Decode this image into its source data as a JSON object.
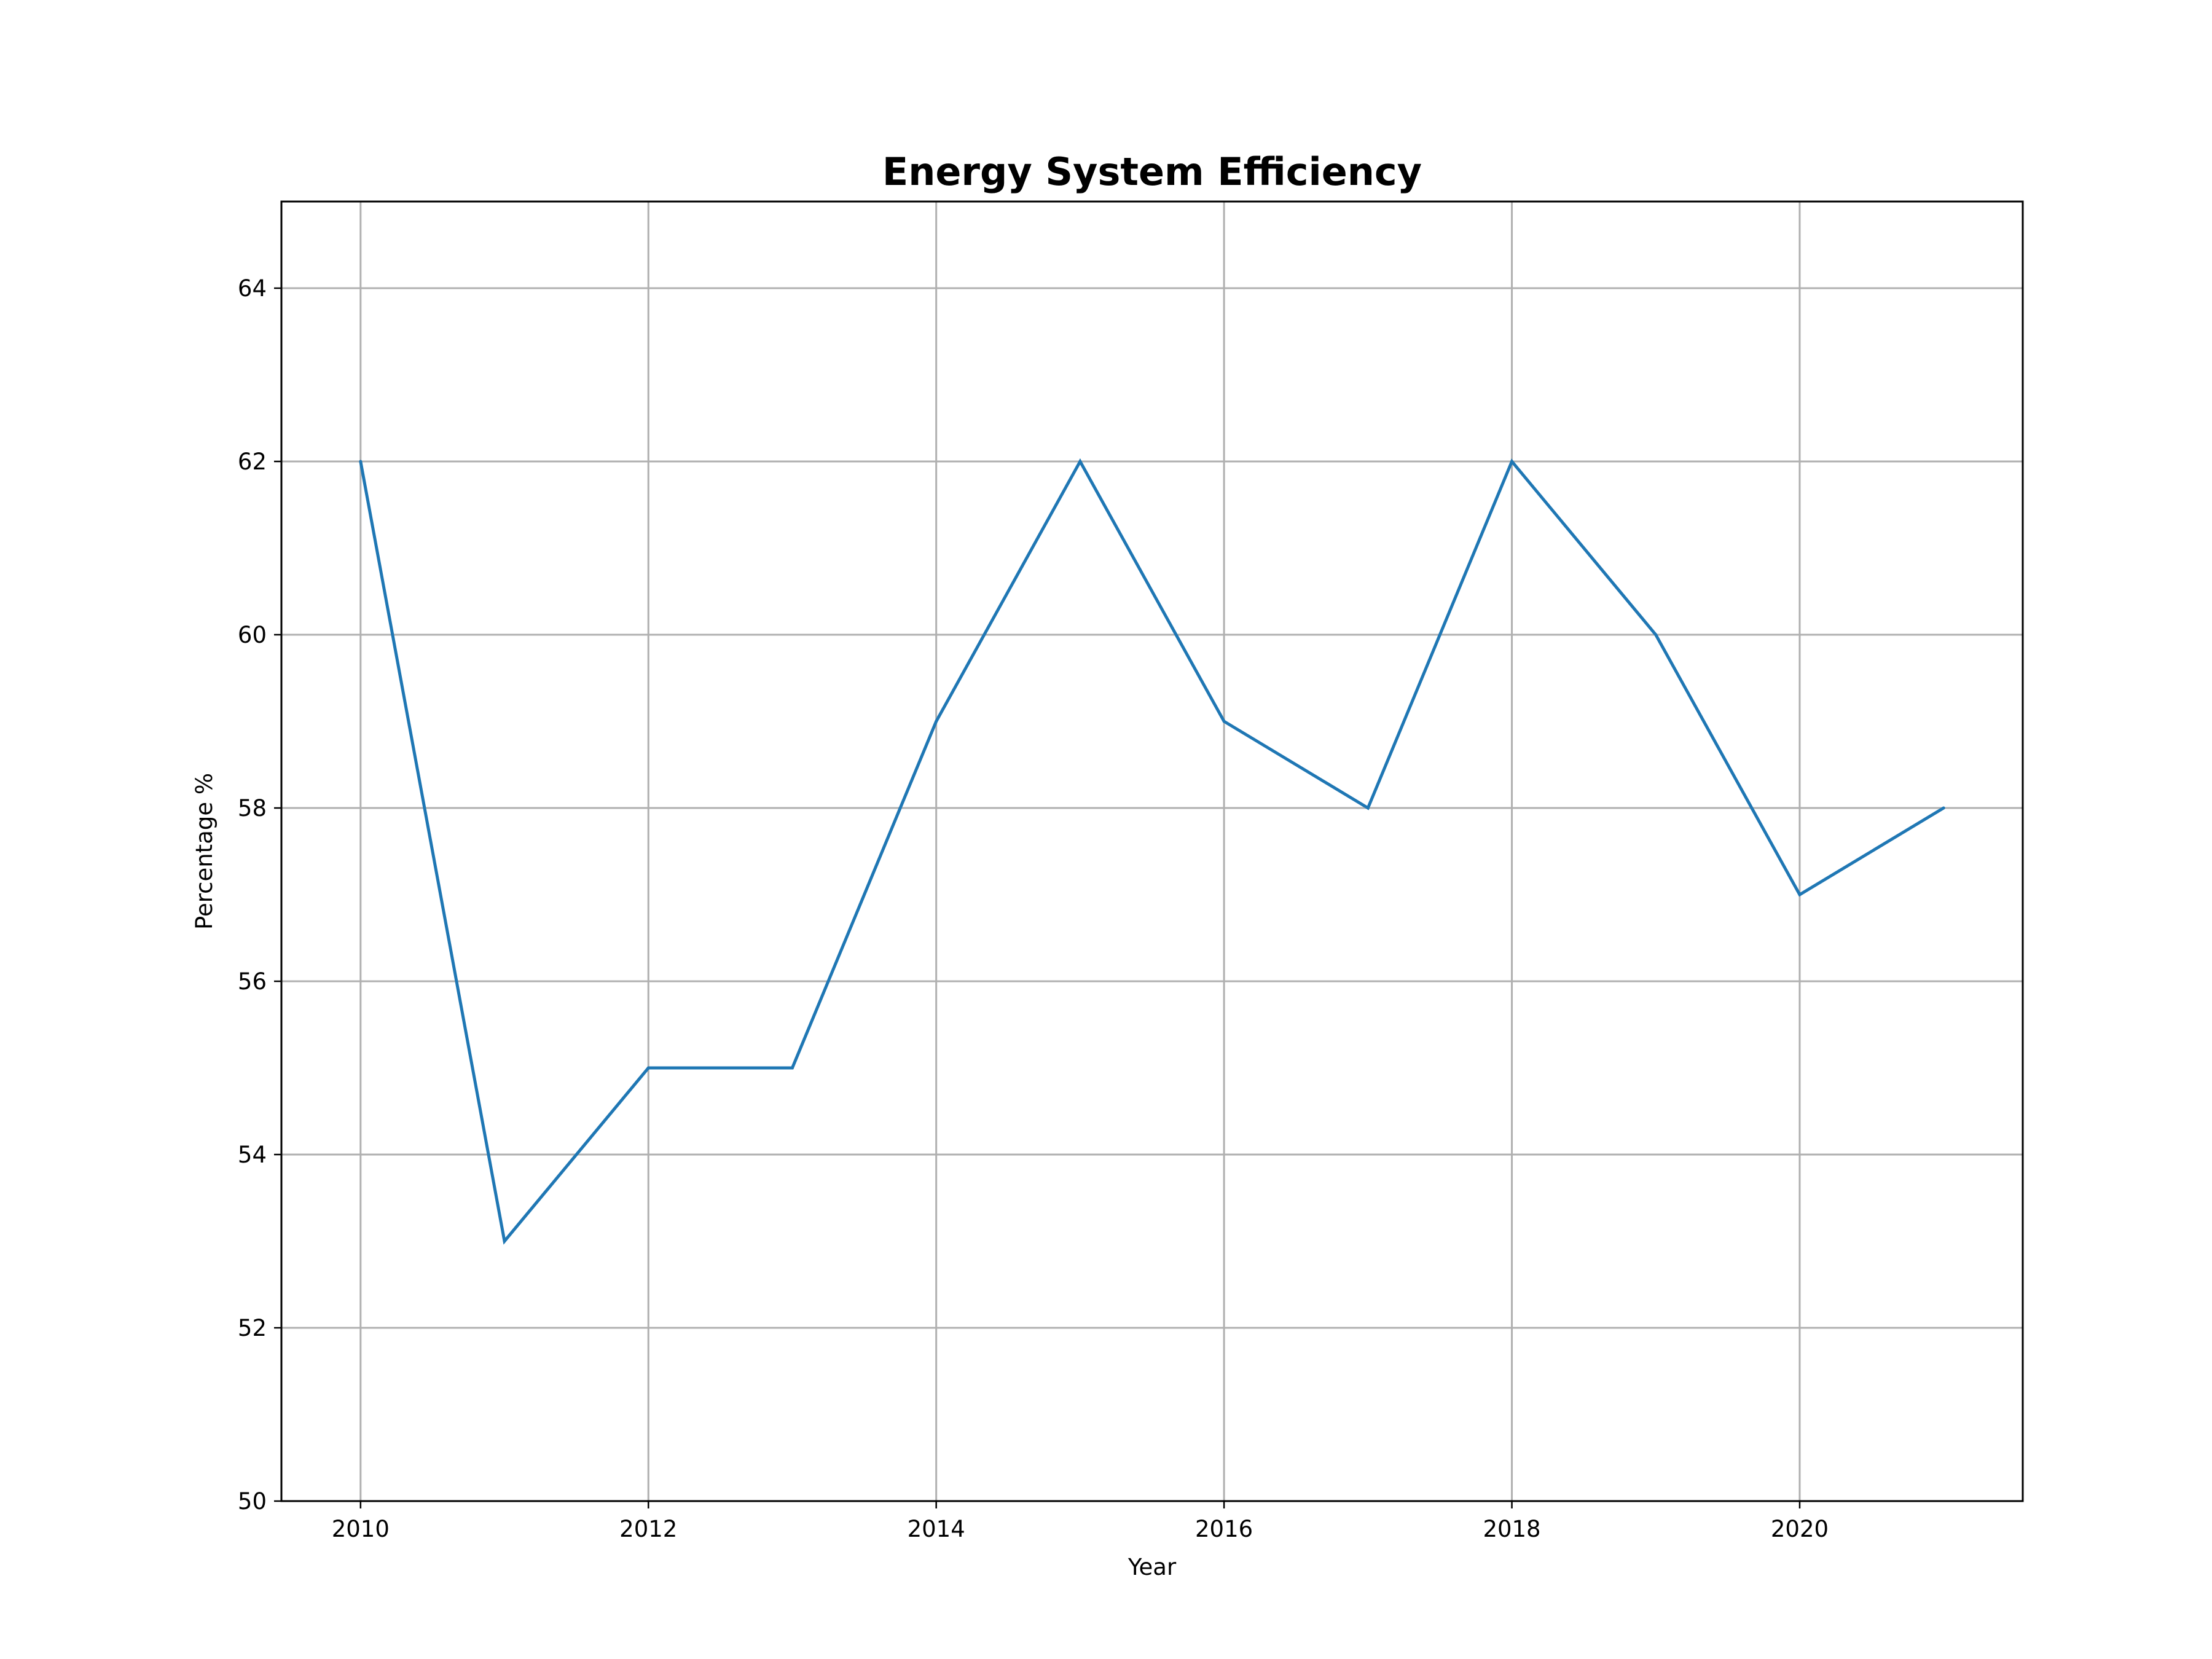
{
  "chart_data": {
    "type": "line",
    "title": "Energy System Efficiency",
    "xlabel": "Year",
    "ylabel": "Percentage %",
    "x": [
      2010,
      2011,
      2012,
      2013,
      2014,
      2015,
      2016,
      2017,
      2018,
      2019,
      2020,
      2021
    ],
    "series": [
      {
        "values": [
          62,
          53,
          55,
          55,
          59,
          62,
          59,
          58,
          62,
          60,
          57,
          58
        ],
        "color": "#1f77b4"
      }
    ],
    "xlim": [
      2009.45,
      2021.55
    ],
    "ylim": [
      50,
      65
    ],
    "xticks": [
      2010,
      2012,
      2014,
      2016,
      2018,
      2020
    ],
    "yticks": [
      50,
      52,
      54,
      56,
      58,
      60,
      62,
      64
    ],
    "grid": true,
    "legend": "none"
  }
}
